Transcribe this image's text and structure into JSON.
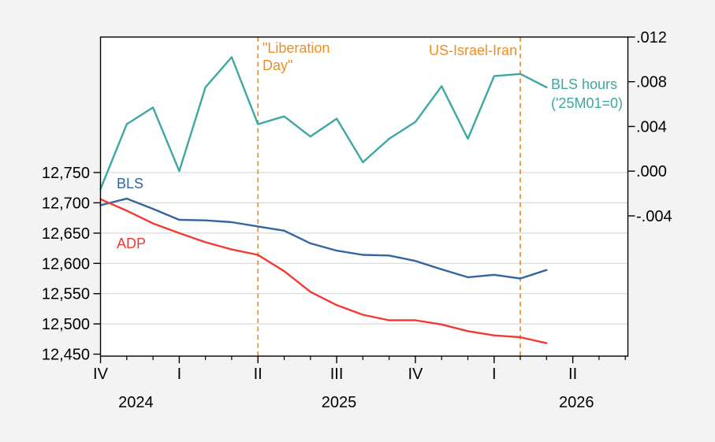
{
  "colors": {
    "canvas": "#F3F3F3",
    "plot_bg": "#FFFFFF",
    "grid": "#D9D9D9",
    "axis": "#000000",
    "tick_label": "#000000",
    "event_line": "#F08E22",
    "bls_blue": "#35659E",
    "adp_red": "#EF3B33",
    "hours_teal": "#3EA7A2"
  },
  "chart_data": {
    "type": "line",
    "title": "",
    "frequency": "monthly",
    "categories": [
      "2024M10",
      "2024M11",
      "2024M12",
      "2025M01",
      "2025M02",
      "2025M03",
      "2025M04",
      "2025M05",
      "2025M06",
      "2025M07",
      "2025M08",
      "2025M09",
      "2025M10",
      "2025M11",
      "2025M12",
      "2026M01",
      "2026M02",
      "2026M03"
    ],
    "x_axis": {
      "months_span": 20.1,
      "quarter_ticks": [
        {
          "label": "IV",
          "month": 0
        },
        {
          "label": "I",
          "month": 3
        },
        {
          "label": "II",
          "month": 6
        },
        {
          "label": "III",
          "month": 9
        },
        {
          "label": "IV",
          "month": 12
        },
        {
          "label": "I",
          "month": 15
        },
        {
          "label": "II",
          "month": 18
        }
      ],
      "minor_tick_months": [
        1,
        2,
        4,
        5,
        7,
        8,
        10,
        11,
        13,
        14,
        16,
        17,
        19,
        20
      ],
      "year_labels": [
        {
          "label": "2024",
          "month": 1.35
        },
        {
          "label": "2025",
          "month": 9.09
        },
        {
          "label": "2026",
          "month": 18.14
        }
      ]
    },
    "left_axis": {
      "min": 12446.7,
      "max": 12974,
      "ticks": [
        {
          "label": "12,450",
          "value": 12450
        },
        {
          "label": "12,500",
          "value": 12500
        },
        {
          "label": "12,550",
          "value": 12550
        },
        {
          "label": "12,600",
          "value": 12600
        },
        {
          "label": "12,650",
          "value": 12650
        },
        {
          "label": "12,700",
          "value": 12700
        },
        {
          "label": "12,750",
          "value": 12750
        }
      ]
    },
    "right_axis": {
      "min": -0.01655,
      "max": 0.012,
      "ticks": [
        {
          "label": "-.004",
          "value": -0.004
        },
        {
          "label": ".000",
          "value": 0
        },
        {
          "label": ".004",
          "value": 0.004
        },
        {
          "label": ".008",
          "value": 0.008
        },
        {
          "label": ".012",
          "value": 0.012
        }
      ]
    },
    "series": [
      {
        "id": "bls",
        "name": "BLS",
        "axis": "left",
        "color": "#35659E",
        "label_lines": [
          "BLS"
        ],
        "values": [
          12696,
          12707,
          12690,
          12672,
          12671,
          12668,
          12661,
          12654,
          12633,
          12621,
          12614,
          12613,
          12604,
          12590,
          12577,
          12581,
          12575,
          12589
        ]
      },
      {
        "id": "adp",
        "name": "ADP",
        "axis": "left",
        "color": "#EF3B33",
        "label_lines": [
          "ADP"
        ],
        "values": [
          12706,
          12687,
          12666,
          12650,
          12635,
          12623,
          12614,
          12587,
          12553,
          12531,
          12515,
          12506,
          12506,
          12499,
          12488,
          12481,
          12478,
          12468
        ]
      },
      {
        "id": "bls-hours",
        "name": "BLS hours ('25M01=0)",
        "axis": "right",
        "color": "#3EA7A2",
        "label_lines": [
          "BLS hours",
          "('25M01=0)"
        ],
        "values": [
          -0.0016,
          0.0042,
          0.0057,
          0.0,
          0.0075,
          0.0102,
          0.0042,
          0.0049,
          0.0031,
          0.0047,
          0.0008,
          0.0029,
          0.0044,
          0.0076,
          0.0029,
          0.0085,
          0.0087,
          0.0075
        ]
      }
    ],
    "event_lines": [
      {
        "id": "liberation-day",
        "month": 6,
        "label_lines": [
          "\"Liberation",
          "Day\""
        ]
      },
      {
        "id": "us-israel-iran",
        "month": 16,
        "label_lines": [
          "US-Israel-Iran"
        ]
      }
    ],
    "legend_position": "inline-labels",
    "grid": "horizontal-only"
  }
}
